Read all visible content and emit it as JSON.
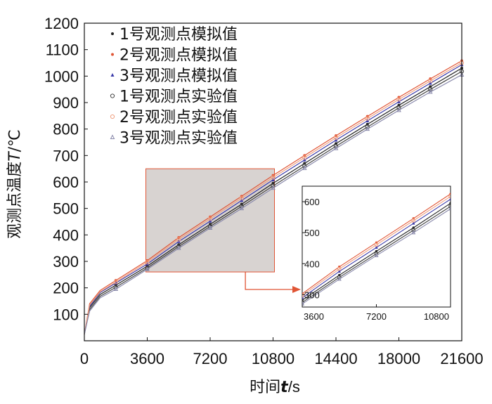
{
  "chart_data": {
    "type": "line",
    "xlabel_prefix": "时间",
    "xlabel_var": "t",
    "xlabel_unit": "/s",
    "ylabel_prefix": "观测点温度",
    "ylabel_var": "T",
    "ylabel_unit": "/℃",
    "xlim": [
      0,
      21600
    ],
    "ylim": [
      0,
      1200
    ],
    "xticks": [
      0,
      3600,
      7200,
      10800,
      14400,
      18000,
      21600
    ],
    "yticks": [
      100,
      200,
      300,
      400,
      500,
      600,
      700,
      800,
      900,
      1000,
      1100,
      1200
    ],
    "legend_position": "top-left",
    "series": [
      {
        "name": "1号观测点模拟值",
        "kind": "simulated",
        "color": "#222222",
        "marker": "dot",
        "x": [
          0,
          300,
          900,
          1800,
          3600,
          5400,
          7200,
          9000,
          10800,
          12600,
          14400,
          16200,
          18000,
          19800,
          21600
        ],
        "y": [
          25,
          125,
          175,
          210,
          282,
          363,
          440,
          516,
          595,
          670,
          745,
          818,
          890,
          960,
          1030
        ]
      },
      {
        "name": "2号观测点模拟值",
        "kind": "simulated",
        "color": "#e05535",
        "marker": "dot",
        "x": [
          0,
          300,
          900,
          1800,
          3600,
          5400,
          7200,
          9000,
          10800,
          12600,
          14400,
          16200,
          18000,
          19800,
          21600
        ],
        "y": [
          25,
          140,
          190,
          228,
          303,
          390,
          468,
          546,
          625,
          700,
          775,
          848,
          920,
          990,
          1058
        ]
      },
      {
        "name": "3号观测点模拟值",
        "kind": "simulated",
        "color": "#3a3aaa",
        "marker": "triangle",
        "x": [
          0,
          300,
          900,
          1800,
          3600,
          5400,
          7200,
          9000,
          10800,
          12600,
          14400,
          16200,
          18000,
          19800,
          21600
        ],
        "y": [
          25,
          130,
          182,
          218,
          290,
          375,
          452,
          530,
          608,
          683,
          758,
          831,
          903,
          973,
          1043
        ]
      },
      {
        "name": "1号观测点实验值",
        "kind": "experimental",
        "color": "#444444",
        "marker": "circle",
        "x": [
          0,
          300,
          900,
          1800,
          3600,
          5400,
          7200,
          9000,
          10800,
          12600,
          14400,
          16200,
          18000,
          19800,
          21600
        ],
        "y": [
          25,
          118,
          168,
          202,
          275,
          356,
          432,
          508,
          585,
          660,
          735,
          808,
          880,
          950,
          1018
        ]
      },
      {
        "name": "2号观测点实验值",
        "kind": "experimental",
        "color": "#f0a080",
        "marker": "circle",
        "x": [
          0,
          300,
          900,
          1800,
          3600,
          5400,
          7200,
          9000,
          10800,
          12600,
          14400,
          16200,
          18000,
          19800,
          21600
        ],
        "y": [
          25,
          135,
          185,
          222,
          297,
          383,
          461,
          539,
          617,
          692,
          767,
          840,
          912,
          982,
          1050
        ]
      },
      {
        "name": "3号观测点实验值",
        "kind": "experimental",
        "color": "#8888aa",
        "marker": "triangle-open",
        "x": [
          0,
          300,
          900,
          1800,
          3600,
          5400,
          7200,
          9000,
          10800,
          12600,
          14400,
          16200,
          18000,
          19800,
          21600
        ],
        "y": [
          25,
          112,
          162,
          195,
          270,
          350,
          426,
          500,
          577,
          652,
          727,
          800,
          871,
          940,
          1005
        ]
      }
    ],
    "zoom_region": {
      "xlim": [
        3600,
        10800
      ],
      "ylim": [
        260,
        650
      ],
      "fill": "#d8d3d1",
      "border": "#e05535"
    },
    "inset": {
      "xlim": [
        3600,
        10800
      ],
      "ylim": [
        260,
        650
      ],
      "xticks": [
        3600,
        7200,
        10800
      ],
      "yticks": [
        300,
        400,
        500,
        600
      ]
    }
  }
}
